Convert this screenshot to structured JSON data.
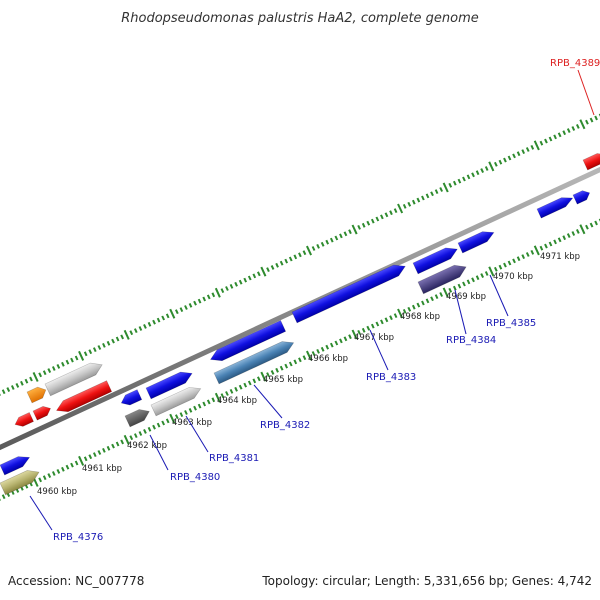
{
  "title": "Rhodopseudomonas palustris HaA2, complete genome",
  "footer": {
    "accession": "Accession: NC_007778",
    "summary": "Topology: circular; Length: 5,331,656 bp; Genes: 4,742"
  },
  "colors": {
    "backbone": "#8c8c8c",
    "tick_dots": "#2e8b2e",
    "forward_gene": "#1a1ae6",
    "label_default": "#1a1ab4",
    "label_highlight": "#dd2222"
  },
  "scale_labels": [
    "4960 kbp",
    "4961 kbp",
    "4962 kbp",
    "4963 kbp",
    "4964 kbp",
    "4965 kbp",
    "4966 kbp",
    "4967 kbp",
    "4968 kbp",
    "4969 kbp",
    "4970 kbp",
    "4971 kbp"
  ],
  "gene_labels": [
    {
      "name": "RPB_4376",
      "color": "#1a1ab4"
    },
    {
      "name": "RPB_4380",
      "color": "#1a1ab4"
    },
    {
      "name": "RPB_4381",
      "color": "#1a1ab4"
    },
    {
      "name": "RPB_4382",
      "color": "#1a1ab4"
    },
    {
      "name": "RPB_4383",
      "color": "#1a1ab4"
    },
    {
      "name": "RPB_4384",
      "color": "#1a1ab4"
    },
    {
      "name": "RPB_4385",
      "color": "#1a1ab4"
    },
    {
      "name": "RPB_4389",
      "color": "#dd2222"
    }
  ]
}
